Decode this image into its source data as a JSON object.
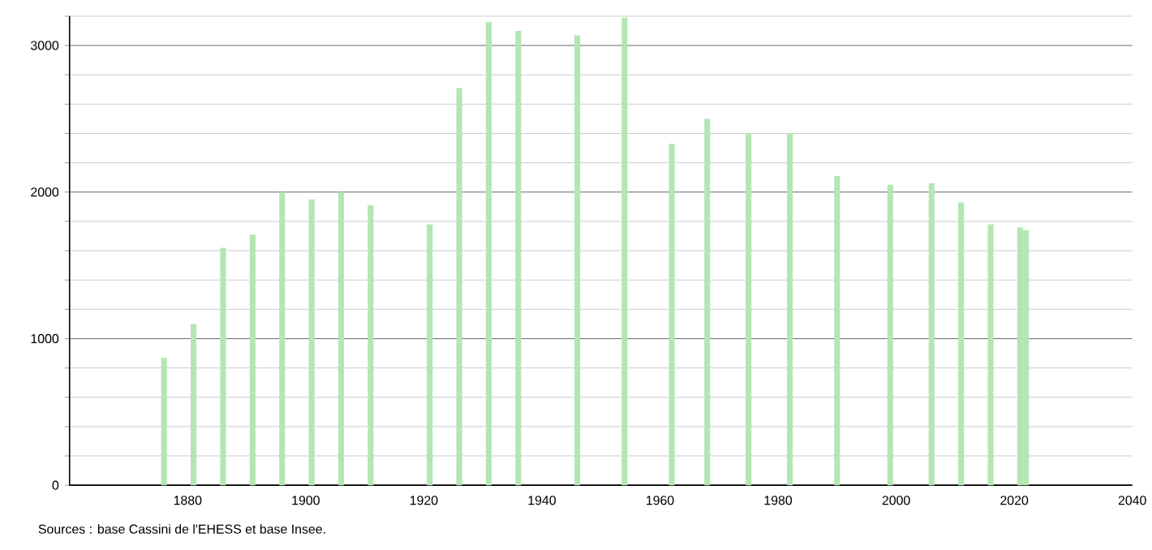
{
  "chart_data": {
    "type": "bar",
    "x": [
      1876,
      1881,
      1886,
      1891,
      1896,
      1901,
      1906,
      1911,
      1921,
      1926,
      1931,
      1936,
      1946,
      1954,
      1962,
      1968,
      1975,
      1982,
      1990,
      1999,
      2006,
      2011,
      2016,
      2021,
      2022
    ],
    "values": [
      870,
      1100,
      1620,
      1710,
      2000,
      1950,
      2000,
      1910,
      1780,
      2710,
      3160,
      3100,
      3070,
      3190,
      2330,
      2500,
      2400,
      2400,
      2110,
      2050,
      2060,
      1930,
      1780,
      1760,
      1740
    ],
    "color": "#b3e6b3",
    "xlim": [
      1860,
      2040
    ],
    "xticks": [
      1880,
      1900,
      1920,
      1940,
      1960,
      1980,
      2000,
      2020,
      2040
    ],
    "ylim": [
      0,
      3200
    ],
    "yticks": [
      0,
      {
        "value": 200,
        "label": null
      },
      {
        "value": 400,
        "label": null
      },
      {
        "value": 600,
        "label": null
      },
      {
        "value": 800,
        "label": null
      },
      1000,
      {
        "value": 1200,
        "label": null
      },
      {
        "value": 1400,
        "label": null
      },
      {
        "value": 1600,
        "label": null
      },
      {
        "value": 1800,
        "label": null
      },
      2000,
      {
        "value": 2200,
        "label": null
      },
      {
        "value": 2400,
        "label": null
      },
      {
        "value": 2600,
        "label": null
      },
      {
        "value": 2800,
        "label": null
      },
      3000,
      {
        "value": 3200,
        "label": null
      }
    ],
    "grid": "y",
    "annotations": [
      "Sources : base Cassini de l'EHESS et base Insee."
    ]
  }
}
